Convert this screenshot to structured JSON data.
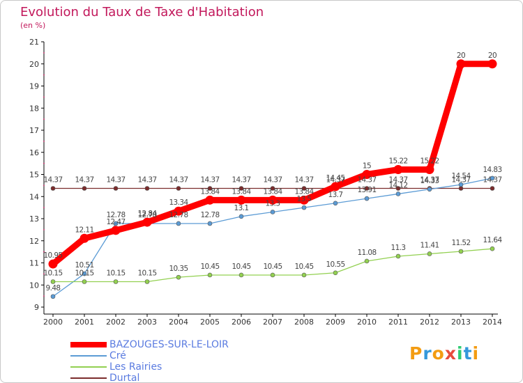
{
  "title": "Evolution du Taux de Taxe d'Habitation",
  "subtitle": "(en %)",
  "logo_text": "Proxiti",
  "logo_colors": [
    "#f39c12",
    "#3498db",
    "#f39c12",
    "#e74c3c",
    "#2ecc71",
    "#3498db",
    "#f39c12"
  ],
  "chart_data": {
    "type": "line",
    "title": "Evolution du Taux de Taxe d'Habitation",
    "ylabel": "(en %)",
    "xlabel": "",
    "ylim": [
      9,
      21
    ],
    "yticks": [
      9,
      10,
      11,
      12,
      13,
      14,
      15,
      16,
      17,
      18,
      19,
      20,
      21
    ],
    "grid": false,
    "legend_position": "bottom-left",
    "x": [
      "2000",
      "2001",
      "2002",
      "2003",
      "2004",
      "2005",
      "2006",
      "2007",
      "2008",
      "2009",
      "2010",
      "2011",
      "2012",
      "2013",
      "2014"
    ],
    "series": [
      {
        "name": "BAZOUGES-SUR-LE-LOIR",
        "color": "#ff0000",
        "values": [
          10.95,
          12.11,
          12.47,
          12.84,
          13.34,
          13.84,
          13.84,
          13.84,
          13.84,
          14.45,
          15,
          15.22,
          15.22,
          20,
          20
        ],
        "labels": [
          "10.95",
          "12.11",
          "12.47",
          "12.84",
          "13.34",
          "13.84",
          "13.84",
          "13.84",
          "13.84",
          "14.45",
          "15",
          "15.22",
          "15.22",
          "20",
          "20"
        ]
      },
      {
        "name": "Cré",
        "color": "#5b9bd5",
        "values": [
          9.48,
          10.51,
          12.78,
          12.78,
          12.78,
          12.78,
          13.1,
          13.3,
          13.5,
          13.7,
          13.91,
          14.12,
          14.33,
          14.54,
          14.83
        ],
        "labels": [
          "9.48",
          "10.51",
          "12.78",
          "12.78",
          "12.78",
          "12.78",
          "13.1",
          "13.3",
          "13.5",
          "13.7",
          "13.91",
          "14.12",
          "14.33",
          "14.54",
          "14.83"
        ]
      },
      {
        "name": "Les Rairies",
        "color": "#92d050",
        "values": [
          10.15,
          10.15,
          10.15,
          10.15,
          10.35,
          10.45,
          10.45,
          10.45,
          10.45,
          10.55,
          11.08,
          11.3,
          11.41,
          11.52,
          11.64
        ],
        "labels": [
          "10.15",
          "10.15",
          "10.15",
          "10.15",
          "10.35",
          "10.45",
          "10.45",
          "10.45",
          "10.45",
          "10.55",
          "11.08",
          "11.3",
          "11.41",
          "11.52",
          "11.64"
        ]
      },
      {
        "name": "Durtal",
        "color": "#7b2c2c",
        "values": [
          14.37,
          14.37,
          14.37,
          14.37,
          14.37,
          14.37,
          14.37,
          14.37,
          14.37,
          14.37,
          14.37,
          14.37,
          14.37,
          14.37,
          14.37
        ],
        "labels": [
          "14.37",
          "14.37",
          "14.37",
          "14.37",
          "14.37",
          "14.37",
          "14.37",
          "14.37",
          "14.37",
          "14.37",
          "14.37",
          "14.37",
          "14.37",
          "14.37",
          "14.37"
        ]
      }
    ]
  }
}
